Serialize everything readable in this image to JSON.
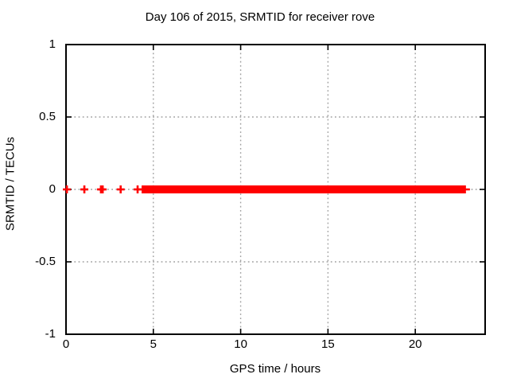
{
  "chart_data": {
    "type": "scatter",
    "title": "Day 106 of 2015, SRMTID for receiver rove",
    "xlabel": "GPS time / hours",
    "ylabel": "SRMTID / TECUs",
    "xlim": [
      0,
      24
    ],
    "ylim": [
      -1,
      1
    ],
    "xticks": [
      0,
      5,
      10,
      15,
      20
    ],
    "xtick_labels": [
      "0",
      "5",
      "10",
      "15",
      "20"
    ],
    "yticks": [
      -1,
      -0.5,
      0,
      0.5,
      1
    ],
    "ytick_labels": [
      "-1",
      "-0.5",
      "0",
      "0.5",
      "1"
    ],
    "grid": true,
    "grid_style": "dotted",
    "legend": "none",
    "series": [
      {
        "name": "SRMTID",
        "marker": "plus",
        "marker_size_px": 10,
        "color": "#ff0000",
        "y_value": 0,
        "isolated_points_x": [
          0.05,
          1.05,
          2.0,
          2.1,
          3.13,
          4.1
        ],
        "dense_band": {
          "x_start": 4.33,
          "x_end": 22.9,
          "y": 0
        }
      }
    ],
    "colors": {
      "marker": "#ff0000",
      "grid": "#a0a0a0",
      "border": "#000000",
      "text": "#000000",
      "background": "#ffffff"
    }
  }
}
